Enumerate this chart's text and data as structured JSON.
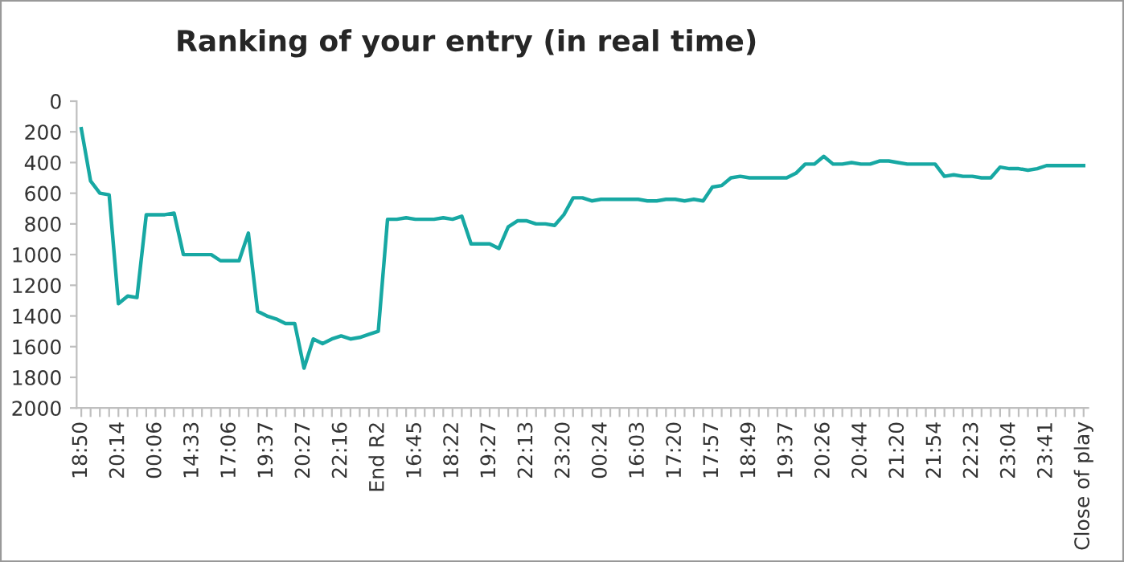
{
  "chart_data": {
    "type": "line",
    "title": "Ranking of your entry (in real time)",
    "categories": [
      "18:50",
      null,
      null,
      null,
      "20:14",
      null,
      null,
      null,
      "00:06",
      null,
      null,
      null,
      "14:33",
      null,
      null,
      null,
      "17:06",
      null,
      null,
      null,
      "19:37",
      null,
      null,
      null,
      "20:27",
      null,
      null,
      null,
      "22:16",
      null,
      null,
      null,
      "End R2",
      null,
      null,
      null,
      "16:45",
      null,
      null,
      null,
      "18:22",
      null,
      null,
      null,
      "19:27",
      null,
      null,
      null,
      "22:13",
      null,
      null,
      null,
      "23:20",
      null,
      null,
      null,
      "00:24",
      null,
      null,
      null,
      "16:03",
      null,
      null,
      null,
      "17:20",
      null,
      null,
      null,
      "17:57",
      null,
      null,
      null,
      "18:49",
      null,
      null,
      null,
      "19:37",
      null,
      null,
      null,
      "20:26",
      null,
      null,
      null,
      "20:44",
      null,
      null,
      null,
      "21:20",
      null,
      null,
      null,
      "21:54",
      null,
      null,
      null,
      "22:23",
      null,
      null,
      null,
      "23:04",
      null,
      null,
      null,
      "23:41",
      null,
      null,
      null,
      "Close of play"
    ],
    "series": [
      {
        "color": "#17a8a3",
        "values": [
          180,
          520,
          600,
          610,
          1320,
          1270,
          1280,
          740,
          740,
          740,
          730,
          1000,
          1000,
          1000,
          1000,
          1040,
          1040,
          1040,
          860,
          1370,
          1400,
          1420,
          1450,
          1450,
          1740,
          1550,
          1580,
          1550,
          1530,
          1550,
          1540,
          1520,
          1500,
          770,
          770,
          760,
          770,
          770,
          770,
          760,
          770,
          750,
          930,
          930,
          930,
          960,
          820,
          780,
          780,
          800,
          800,
          810,
          740,
          630,
          630,
          650,
          640,
          640,
          640,
          640,
          640,
          650,
          650,
          640,
          640,
          650,
          640,
          650,
          560,
          550,
          500,
          490,
          500,
          500,
          500,
          500,
          500,
          470,
          410,
          410,
          360,
          410,
          410,
          400,
          410,
          410,
          390,
          390,
          400,
          410,
          410,
          410,
          410,
          490,
          480,
          490,
          490,
          500,
          500,
          430,
          440,
          440,
          450,
          440,
          420,
          420,
          420,
          420,
          420
        ]
      }
    ],
    "ylim": [
      2000,
      0
    ],
    "yticks": [
      0,
      200,
      400,
      600,
      800,
      1000,
      1200,
      1400,
      1600,
      1800,
      2000
    ],
    "grid": false
  }
}
